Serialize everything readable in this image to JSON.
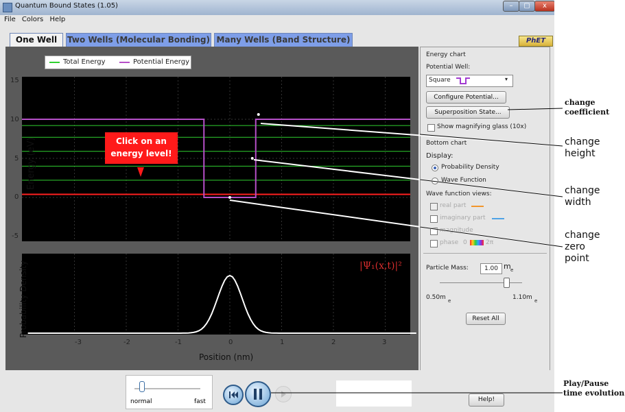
{
  "window": {
    "title": "Quantum Bound States (1.05)",
    "min": "–",
    "max": "▢",
    "close": "x"
  },
  "menu": [
    "File",
    "Colors",
    "Help"
  ],
  "tabs": [
    {
      "label": "One Well",
      "active": true
    },
    {
      "label": "Two Wells (Molecular Bonding)",
      "active": false
    },
    {
      "label": "Many Wells (Band Structure)",
      "active": false
    }
  ],
  "logo": "PhET",
  "legend": {
    "total": "Total Energy",
    "potential": "Potential Energy",
    "total_color": "#2fd12f",
    "potential_color": "#b64fc8"
  },
  "energy_chart": {
    "ylabel": "Energy (eV)",
    "yticks": [
      "15",
      "10",
      "5",
      "0",
      "-5"
    ],
    "hint": [
      "Click on an",
      "energy level!"
    ],
    "potential": {
      "left_level": 10,
      "right_level": 10,
      "bottom": 0,
      "left_edge": -0.5,
      "right_edge": 0.5
    }
  },
  "prob_chart": {
    "ylabel": "Probability Density",
    "psi": "|Ψ₁(x,t)|²"
  },
  "xaxis": {
    "label": "Position (nm)",
    "ticks": [
      "-3",
      "-2",
      "-1",
      "0",
      "1",
      "2",
      "3"
    ]
  },
  "panel": {
    "energy_chart": "Energy chart",
    "potential_well": "Potential Well:",
    "well_select": "Square",
    "configure": "Configure Potential...",
    "superposition": "Superposition State...",
    "magnify": "Show magnifying glass (10x)",
    "bottom_chart": "Bottom chart",
    "display": "Display:",
    "prob_density": "Probability Density",
    "wave_function": "Wave Function",
    "wf_views": "Wave function views:",
    "real_part": "real part",
    "imag_part": "imaginary part",
    "magnitude": "magnitude",
    "phase": "phase",
    "phase_0": "0",
    "phase_2pi": "2π",
    "particle_mass": "Particle Mass:",
    "mass_value": "1.00",
    "mass_unit": "m",
    "mass_sub": "e",
    "mass_min": "0.50m",
    "mass_max": "1.10m",
    "reset": "Reset All"
  },
  "speed": {
    "normal": "normal",
    "fast": "fast"
  },
  "help_button": "Help!",
  "annotations": {
    "change_coefficient": [
      "change",
      "coefficient"
    ],
    "change_height": [
      "change",
      "height"
    ],
    "change_width": [
      "change",
      "width"
    ],
    "change_zero": [
      "change",
      "zero",
      "point"
    ],
    "play_pause": [
      "Play/Pause",
      "time evolution"
    ]
  }
}
